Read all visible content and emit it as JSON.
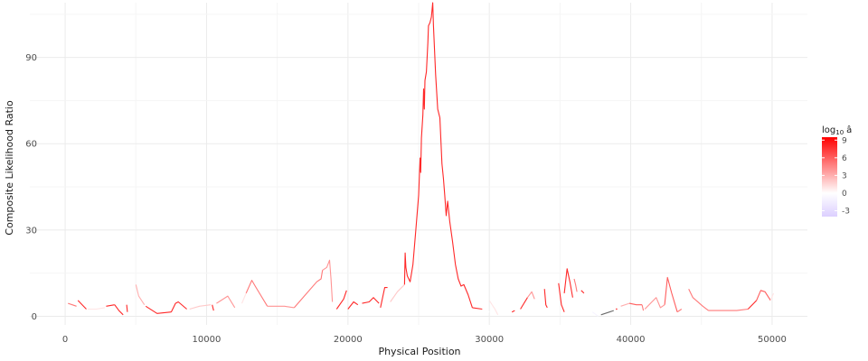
{
  "chart_data": {
    "type": "line",
    "xlabel": "Physical Position",
    "ylabel": "Composite Likelihood Ratio",
    "xlim": [
      -2500,
      52500
    ],
    "ylim": [
      -3,
      109
    ],
    "x_ticks": [
      0,
      10000,
      20000,
      30000,
      40000,
      50000
    ],
    "x_tick_labels": [
      "0",
      "10000",
      "20000",
      "30000",
      "40000",
      "50000"
    ],
    "y_ticks": [
      0,
      30,
      60,
      90
    ],
    "y_tick_labels": [
      "0",
      "30",
      "60",
      "90"
    ],
    "grid": true,
    "legend": {
      "position": "right",
      "title_main": "log",
      "title_sub": "10",
      "title_var": "â",
      "min": -4,
      "max": 9.5,
      "ticks": [
        9,
        6,
        3,
        0,
        -3
      ],
      "tick_labels": [
        "9",
        "6",
        "3",
        "0",
        "-3"
      ],
      "colors": {
        "low": "#dccfff",
        "mid": "#ffffff",
        "high": "#ff0000"
      }
    },
    "segments": [
      {
        "c": 5,
        "pts": [
          [
            200,
            4.5
          ],
          [
            500,
            4
          ],
          [
            800,
            3.5
          ]
        ]
      },
      {
        "c": 8,
        "pts": [
          [
            900,
            5.5
          ],
          [
            1200,
            4
          ],
          [
            1500,
            2.5
          ]
        ]
      },
      {
        "c": 1,
        "pts": [
          [
            1600,
            2.5
          ],
          [
            2200,
            2.5
          ],
          [
            2800,
            3
          ]
        ]
      },
      {
        "c": 8,
        "pts": [
          [
            2900,
            3.5
          ],
          [
            3500,
            4
          ]
        ]
      },
      {
        "c": 8,
        "pts": [
          [
            3500,
            4
          ],
          [
            3800,
            2
          ],
          [
            4100,
            0.5
          ]
        ]
      },
      {
        "c": 8,
        "pts": [
          [
            4350,
            4
          ],
          [
            4400,
            1.5
          ]
        ]
      },
      {
        "c": 3,
        "pts": [
          [
            5000,
            11
          ],
          [
            5200,
            7
          ],
          [
            5600,
            4
          ]
        ]
      },
      {
        "c": 8,
        "pts": [
          [
            5700,
            3.5
          ],
          [
            6500,
            1
          ],
          [
            7500,
            1.5
          ]
        ]
      },
      {
        "c": 8,
        "pts": [
          [
            7500,
            1.5
          ],
          [
            7800,
            4.5
          ],
          [
            8000,
            5
          ],
          [
            8600,
            2.5
          ]
        ]
      },
      {
        "c": 2,
        "pts": [
          [
            8800,
            2.5
          ],
          [
            9500,
            3.5
          ],
          [
            10300,
            4
          ]
        ]
      },
      {
        "c": 8,
        "pts": [
          [
            10400,
            4
          ],
          [
            10500,
            2
          ]
        ]
      },
      {
        "c": 4,
        "pts": [
          [
            10700,
            4.5
          ],
          [
            11500,
            7
          ],
          [
            12000,
            3
          ]
        ]
      },
      {
        "c": 1,
        "pts": [
          [
            12500,
            4.5
          ],
          [
            12800,
            8
          ]
        ]
      },
      {
        "c": 5,
        "pts": [
          [
            12800,
            8
          ],
          [
            13200,
            12.5
          ],
          [
            13500,
            10
          ],
          [
            14300,
            3.5
          ]
        ]
      },
      {
        "c": 4,
        "pts": [
          [
            14300,
            3.5
          ],
          [
            15500,
            3.5
          ],
          [
            16200,
            3
          ]
        ]
      },
      {
        "c": 5,
        "pts": [
          [
            16200,
            3
          ],
          [
            17000,
            7.5
          ],
          [
            17800,
            12
          ],
          [
            18100,
            13
          ],
          [
            18200,
            16
          ]
        ]
      },
      {
        "c": 4,
        "pts": [
          [
            18200,
            16
          ],
          [
            18500,
            17
          ],
          [
            18700,
            19.5
          ],
          [
            18800,
            13
          ],
          [
            18900,
            5
          ]
        ]
      },
      {
        "c": 8,
        "pts": [
          [
            19200,
            2.5
          ],
          [
            19700,
            6
          ],
          [
            19900,
            9
          ]
        ]
      },
      {
        "c": 8,
        "pts": [
          [
            20000,
            2.5
          ],
          [
            20400,
            5
          ],
          [
            20700,
            4
          ]
        ]
      },
      {
        "c": 8,
        "pts": [
          [
            21000,
            4.5
          ],
          [
            21500,
            5
          ],
          [
            21800,
            6.5
          ],
          [
            22200,
            4.5
          ]
        ]
      },
      {
        "c": 8,
        "pts": [
          [
            22300,
            3
          ],
          [
            22600,
            10
          ],
          [
            22800,
            10
          ]
        ]
      },
      {
        "c": 2,
        "pts": [
          [
            23000,
            5
          ],
          [
            23500,
            8.5
          ],
          [
            24000,
            11
          ]
        ]
      },
      {
        "c": 8,
        "pts": [
          [
            24000,
            11
          ],
          [
            24050,
            22
          ],
          [
            24100,
            17
          ],
          [
            24200,
            14
          ],
          [
            24400,
            12
          ],
          [
            24600,
            18
          ],
          [
            24800,
            30
          ],
          [
            25000,
            42
          ],
          [
            25100,
            55
          ],
          [
            25150,
            50
          ],
          [
            25200,
            62
          ],
          [
            25300,
            70
          ],
          [
            25350,
            79
          ],
          [
            25400,
            72
          ],
          [
            25450,
            82
          ],
          [
            25550,
            85
          ],
          [
            25650,
            95
          ],
          [
            25700,
            101
          ],
          [
            25800,
            102
          ],
          [
            25900,
            104
          ],
          [
            26000,
            109
          ],
          [
            26050,
            101
          ],
          [
            26200,
            84
          ],
          [
            26350,
            72
          ],
          [
            26500,
            69
          ],
          [
            26650,
            53
          ],
          [
            26750,
            48
          ],
          [
            26850,
            42
          ],
          [
            26950,
            35
          ],
          [
            27050,
            40
          ],
          [
            27200,
            33
          ],
          [
            27400,
            26
          ],
          [
            27600,
            18
          ],
          [
            27800,
            13
          ],
          [
            28000,
            10.5
          ],
          [
            28200,
            11
          ],
          [
            28500,
            7.5
          ],
          [
            28800,
            3
          ]
        ]
      },
      {
        "c": 8,
        "pts": [
          [
            28800,
            3
          ],
          [
            29500,
            2.5
          ]
        ]
      },
      {
        "c": 0,
        "pts": [
          [
            29500,
            2.5
          ],
          [
            30000,
            1.5
          ]
        ]
      },
      {
        "c": 1,
        "pts": [
          [
            30000,
            5.5
          ],
          [
            30400,
            2.5
          ],
          [
            30600,
            0.5
          ]
        ]
      },
      {
        "c": 8,
        "pts": [
          [
            31600,
            1.5
          ],
          [
            31800,
            2
          ]
        ]
      },
      {
        "c": 8,
        "pts": [
          [
            32200,
            2.5
          ],
          [
            32700,
            6.5
          ]
        ]
      },
      {
        "c": 4,
        "pts": [
          [
            32700,
            6.5
          ],
          [
            33000,
            8.5
          ],
          [
            33200,
            6
          ]
        ]
      },
      {
        "c": 8,
        "pts": [
          [
            33900,
            9.5
          ],
          [
            34000,
            4
          ],
          [
            34100,
            3
          ]
        ]
      },
      {
        "c": 8,
        "pts": [
          [
            34900,
            11.5
          ],
          [
            35100,
            4
          ],
          [
            35300,
            1.5
          ]
        ]
      },
      {
        "c": 8,
        "pts": [
          [
            35300,
            8
          ],
          [
            35500,
            16.5
          ],
          [
            35700,
            12
          ],
          [
            35900,
            6.5
          ]
        ]
      },
      {
        "c": 5,
        "pts": [
          [
            36000,
            13
          ],
          [
            36100,
            11
          ],
          [
            36200,
            8.5
          ]
        ]
      },
      {
        "c": 8,
        "pts": [
          [
            36500,
            9
          ],
          [
            36700,
            8
          ]
        ]
      },
      {
        "c": -1,
        "pts": [
          [
            37300,
            1.5
          ],
          [
            37700,
            0
          ]
        ]
      },
      {
        "c": -2,
        "pts": [
          [
            37900,
            0.5
          ],
          [
            38500,
            1.5
          ],
          [
            38800,
            2
          ]
        ]
      },
      {
        "c": 8,
        "pts": [
          [
            39000,
            2.5
          ]
        ]
      },
      {
        "c": 3,
        "pts": [
          [
            39300,
            3.5
          ],
          [
            39900,
            4.5
          ]
        ]
      },
      {
        "c": 6,
        "pts": [
          [
            39900,
            4.5
          ],
          [
            40400,
            4
          ],
          [
            40800,
            4
          ]
        ]
      },
      {
        "c": 5,
        "pts": [
          [
            40800,
            4
          ],
          [
            40900,
            2
          ]
        ]
      },
      {
        "c": 4,
        "pts": [
          [
            41000,
            2.5
          ],
          [
            41500,
            5
          ],
          [
            41800,
            6.5
          ],
          [
            42100,
            3
          ],
          [
            42400,
            4
          ]
        ]
      },
      {
        "c": 6,
        "pts": [
          [
            42400,
            4
          ],
          [
            42600,
            13.5
          ],
          [
            42900,
            8
          ],
          [
            43300,
            1.5
          ]
        ]
      },
      {
        "c": 5,
        "pts": [
          [
            43300,
            1.5
          ],
          [
            43600,
            2.5
          ]
        ]
      },
      {
        "c": 5,
        "pts": [
          [
            44100,
            9.5
          ],
          [
            44400,
            6.5
          ],
          [
            45100,
            3.5
          ],
          [
            45500,
            2
          ]
        ]
      },
      {
        "c": 5,
        "pts": [
          [
            45500,
            2
          ],
          [
            46500,
            2
          ],
          [
            47500,
            2
          ],
          [
            48300,
            2.5
          ]
        ]
      },
      {
        "c": 8,
        "pts": [
          [
            48300,
            2.5
          ],
          [
            48700,
            4.5
          ],
          [
            48900,
            5.5
          ]
        ]
      },
      {
        "c": 6,
        "pts": [
          [
            48900,
            5.5
          ],
          [
            49200,
            9
          ],
          [
            49500,
            8.5
          ],
          [
            49900,
            5.5
          ]
        ]
      },
      {
        "c": 1,
        "pts": [
          [
            49900,
            5.5
          ],
          [
            50100,
            8
          ]
        ]
      }
    ]
  }
}
